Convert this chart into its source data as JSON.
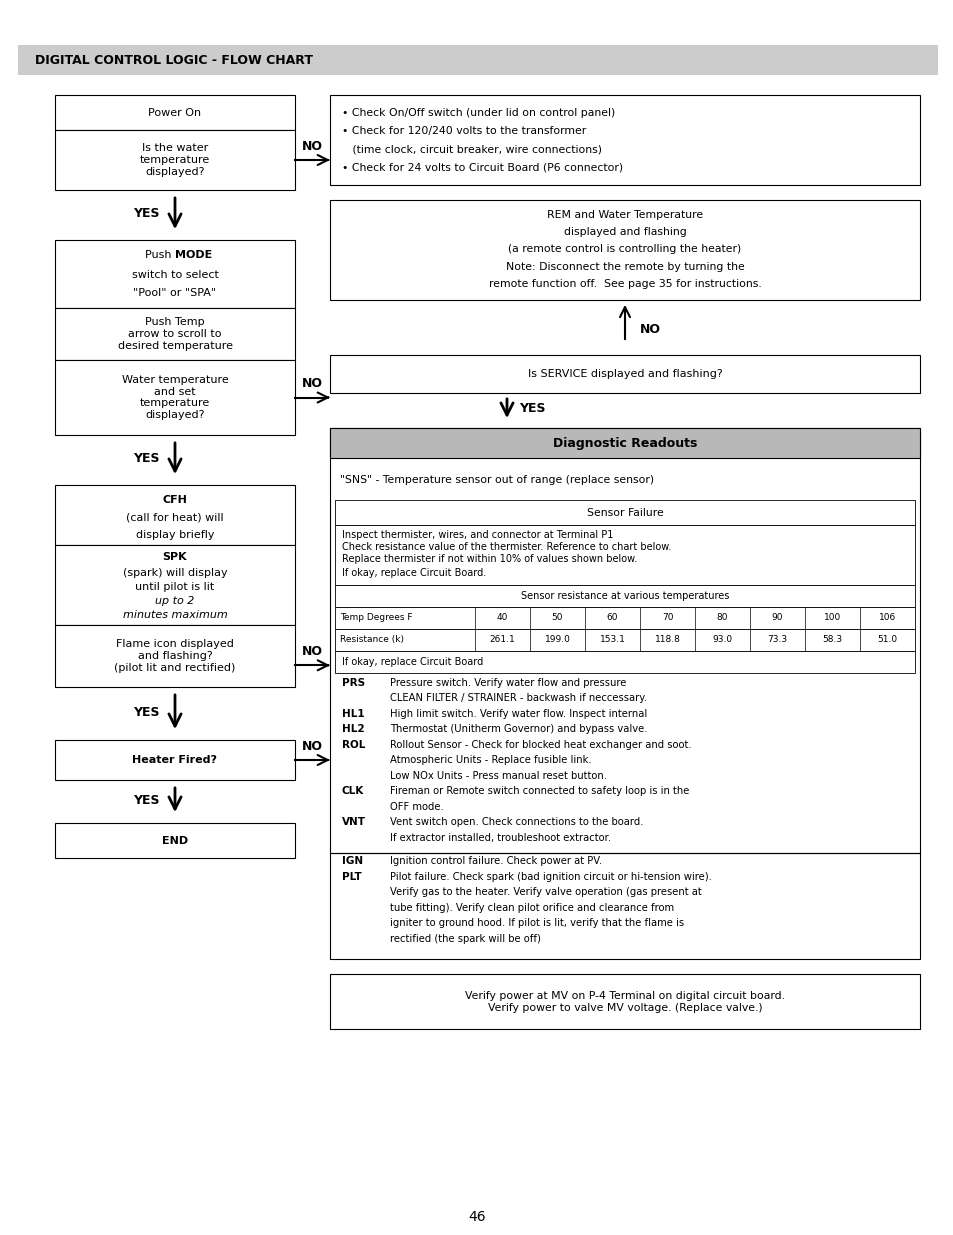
{
  "title": "DIGITAL CONTROL LOGIC - FLOW CHART",
  "page_number": "46",
  "background": "#ffffff",
  "header_bg": "#cccccc",
  "diag_header_bg": "#b8b8b8",
  "left_boxes": [
    {
      "id": "power_on",
      "text": "Power On",
      "bold": false
    },
    {
      "id": "water_temp_q",
      "text": "Is the water\ntemperature\ndisplayed?",
      "bold": false
    },
    {
      "id": "mode_push_temp_water",
      "text_lines": [
        {
          "text": "Push ",
          "bold": false,
          "append": true
        },
        {
          "text": "MODE",
          "bold": true,
          "append": true
        },
        {
          "text": "",
          "bold": false,
          "newline": true
        },
        {
          "text": "switch to select",
          "bold": false
        },
        {
          "text": "\"Pool\" or \"SPA\"",
          "bold": false
        }
      ]
    },
    {
      "id": "push_temp",
      "text": "Push Temp\narrow to scroll to\ndesired temperature",
      "bold": false
    },
    {
      "id": "water_temp_set",
      "text": "Water temperature\nand set\ntemperature\ndisplayed?",
      "bold": false
    },
    {
      "id": "cfh",
      "text_lines": [
        {
          "text": "CFH",
          "bold": true
        },
        {
          "text": "(call for heat) will",
          "bold": false
        },
        {
          "text": "display briefly",
          "bold": false
        }
      ]
    },
    {
      "id": "spk",
      "text_lines": [
        {
          "text": "SPK",
          "bold": true
        },
        {
          "text": "(spark) will display",
          "bold": false
        },
        {
          "text": "until pilot is lit",
          "bold": false
        },
        {
          "text": "up to 2",
          "bold": false,
          "italic": true
        },
        {
          "text": "minutes maximum",
          "bold": false,
          "italic": true
        }
      ]
    },
    {
      "id": "flame",
      "text": "Flame icon displayed\nand flashing?\n(pilot lit and rectified)",
      "bold": false
    },
    {
      "id": "heater_fired",
      "text": "Heater Fired?",
      "bold": true
    },
    {
      "id": "end",
      "text": "END",
      "bold": true
    }
  ],
  "right_box1_text": "• Check On/Off switch (under lid on control panel)\n• Check for 120/240 volts to the transformer\n   (time clock, circuit breaker, wire connections)\n• Check for 24 volts to Circuit Board (P6 connector)",
  "rem_box_text": "REM and Water Temperature\ndisplayed and flashing\n(a remote control is controlling the heater)\nNote: Disconnect the remote by turning the\nremote function off.  See page 35 for instructions.",
  "service_q_text": "Is SERVICE displayed and flashing?",
  "diag_header_text": "Diagnostic Readouts",
  "sns_text": "\"SNS\" - Temperature sensor out of range (replace sensor)",
  "sensor_failure_header": "Sensor Failure",
  "sensor_failure_text": "Inspect thermister, wires, and connector at Terminal P1\nCheck resistance value of the thermister. Reference to chart below.\nReplace thermister if not within 10% of values shown below.\nIf okay, replace Circuit Board.",
  "resistance_header": "Sensor resistance at various temperatures",
  "temp_row": [
    "Temp Degrees F",
    "40",
    "50",
    "60",
    "70",
    "80",
    "90",
    "100",
    "106"
  ],
  "res_row": [
    "Resistance (k)",
    "261.1",
    "199.0",
    "153.1",
    "118.8",
    "93.0",
    "73.3",
    "58.3",
    "51.0"
  ],
  "if_okay_text": "If okay, replace Circuit Board",
  "codes": [
    {
      "code": "PRS",
      "lines": [
        "Pressure switch. Verify water flow and pressure",
        "CLEAN FILTER / STRAINER - backwash if neccessary."
      ]
    },
    {
      "code": "HL1",
      "lines": [
        "High limit switch. Verify water flow. Inspect internal"
      ]
    },
    {
      "code": "HL2",
      "lines": [
        "Thermostat (Unitherm Governor) and bypass valve."
      ]
    },
    {
      "code": "ROL",
      "lines": [
        "Rollout Sensor - Check for blocked heat exchanger and soot.",
        "Atmospheric Units - Replace fusible link.",
        "Low NOx Units - Press manual reset button."
      ]
    },
    {
      "code": "CLK",
      "lines": [
        "Fireman or Remote switch connected to safety loop is in the",
        "OFF mode."
      ]
    },
    {
      "code": "VNT",
      "lines": [
        "Vent switch open. Check connections to the board.",
        "If extractor installed, troubleshoot extractor."
      ]
    },
    {
      "code": "IGN",
      "lines": [
        "Ignition control failure. Check power at PV."
      ]
    },
    {
      "code": "PLT",
      "lines": [
        "Pilot failure. Check spark (bad ignition circuit or hi-tension wire).",
        "Verify gas to the heater. Verify valve operation (gas present at",
        "tube fitting). Verify clean pilot orifice and clearance from",
        "igniter to ground hood. If pilot is lit, verify that the flame is",
        "rectified (the spark will be off)"
      ]
    }
  ],
  "mv_text": "Verify power at MV on P-4 Terminal on digital circuit board.\nVerify power to valve MV voltage. (Replace valve.)"
}
